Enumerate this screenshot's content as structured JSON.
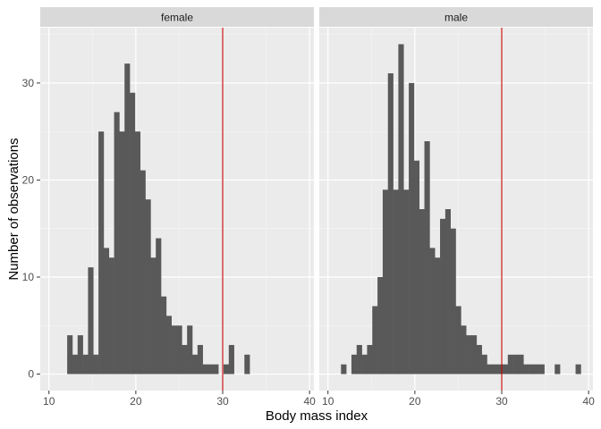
{
  "chart_data": {
    "type": "bar",
    "xlabel": "Body mass index",
    "ylabel": "Number of observations",
    "xlim": [
      9,
      40.5
    ],
    "ylim": [
      -1.7,
      35.7
    ],
    "x_ticks": [
      10,
      20,
      30,
      40
    ],
    "x_tick_labels": [
      "10",
      "20",
      "30",
      "40"
    ],
    "y_ticks": [
      0,
      10,
      20,
      30
    ],
    "y_tick_labels": [
      "0",
      "10",
      "20",
      "30"
    ],
    "bin_start": 11.5,
    "bin_width": 0.6,
    "reference_line_x": 30,
    "grid": true,
    "bar_color": "#595959",
    "line_color": "#cc0000",
    "panel_background": "#ebebeb",
    "strip_background": "#d9d9d9",
    "series": [
      {
        "name": "female",
        "values": [
          0,
          4,
          2,
          4,
          2,
          11,
          2,
          25,
          13,
          12,
          27,
          25,
          32,
          29,
          25,
          21,
          18,
          12,
          14,
          8,
          6,
          5,
          5,
          3,
          5,
          2,
          3,
          1,
          1,
          1,
          0,
          1,
          3,
          0,
          0,
          2
        ]
      },
      {
        "name": "male",
        "values": [
          1,
          0,
          2,
          3,
          2,
          3,
          7,
          10,
          19,
          31,
          19,
          34,
          19,
          30,
          22,
          17,
          24,
          13,
          12,
          16,
          17,
          15,
          7,
          5,
          4,
          4,
          3,
          2,
          1,
          1,
          1,
          1,
          2,
          2,
          2,
          1,
          1,
          1,
          1,
          0,
          0,
          1,
          0,
          0,
          0,
          1
        ]
      }
    ]
  }
}
